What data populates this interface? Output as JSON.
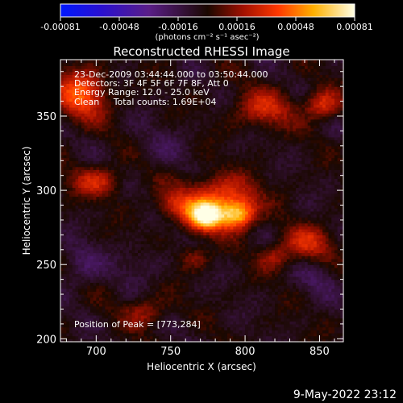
{
  "colorbar": {
    "ticks": [
      "-0.00081",
      "-0.00048",
      "-0.00016",
      "0.00016",
      "0.00048",
      "0.00081"
    ],
    "unit": "(photons cm⁻² s⁻¹ asec⁻²)"
  },
  "chart_data": {
    "type": "heatmap",
    "title": "Reconstructed RHESSI Image",
    "xlabel": "Heliocentric X (arcsec)",
    "ylabel": "Heliocentric Y (arcsec)",
    "xlim": [
      676,
      866
    ],
    "ylim": [
      198,
      388
    ],
    "x_ticks": [
      700,
      750,
      800,
      850
    ],
    "y_ticks": [
      200,
      250,
      300,
      350
    ],
    "zlim": [
      -0.00081,
      0.00081
    ],
    "peak": {
      "x": 773,
      "y": 284,
      "value": 0.00081
    },
    "annotations": [
      "23-Dec-2009 03:44:44.000 to 03:50:44.000",
      "Detectors: 3F 4F 5F 6F 7F 8F, Att 0",
      "Energy Range: 12.0 - 25.0 keV",
      "Clean     Total counts: 1.69E+04",
      "Position of Peak = [773,284]"
    ],
    "sources": [
      {
        "x": 774,
        "y": 283,
        "sx": 9,
        "sy": 7,
        "amp": 0.00085
      },
      {
        "x": 795,
        "y": 284,
        "sx": 8,
        "sy": 7,
        "amp": 0.00065
      },
      {
        "x": 782,
        "y": 298,
        "sx": 18,
        "sy": 9,
        "amp": 0.00035
      },
      {
        "x": 752,
        "y": 290,
        "sx": 9,
        "sy": 6,
        "amp": 0.00025
      },
      {
        "x": 690,
        "y": 365,
        "sx": 12,
        "sy": 12,
        "amp": 0.00045
      },
      {
        "x": 700,
        "y": 306,
        "sx": 12,
        "sy": 7,
        "amp": 0.0003
      },
      {
        "x": 813,
        "y": 355,
        "sx": 14,
        "sy": 9,
        "amp": 0.0003
      },
      {
        "x": 852,
        "y": 358,
        "sx": 8,
        "sy": 7,
        "amp": 0.00035
      },
      {
        "x": 842,
        "y": 265,
        "sx": 12,
        "sy": 8,
        "amp": 0.0003
      },
      {
        "x": 820,
        "y": 255,
        "sx": 8,
        "sy": 6,
        "amp": 0.00022
      },
      {
        "x": 733,
        "y": 218,
        "sx": 10,
        "sy": 7,
        "amp": 0.00022
      },
      {
        "x": 765,
        "y": 255,
        "sx": 8,
        "sy": 6,
        "amp": 0.00018
      },
      {
        "x": 690,
        "y": 250,
        "sx": 10,
        "sy": 10,
        "amp": -0.00015
      },
      {
        "x": 730,
        "y": 250,
        "sx": 12,
        "sy": 8,
        "amp": -0.0001
      },
      {
        "x": 850,
        "y": 240,
        "sx": 10,
        "sy": 8,
        "amp": -0.00012
      },
      {
        "x": 745,
        "y": 330,
        "sx": 14,
        "sy": 10,
        "amp": -8e-05
      }
    ],
    "background": -4e-05
  },
  "footer": {
    "date": "9-May-2022 23:12"
  }
}
